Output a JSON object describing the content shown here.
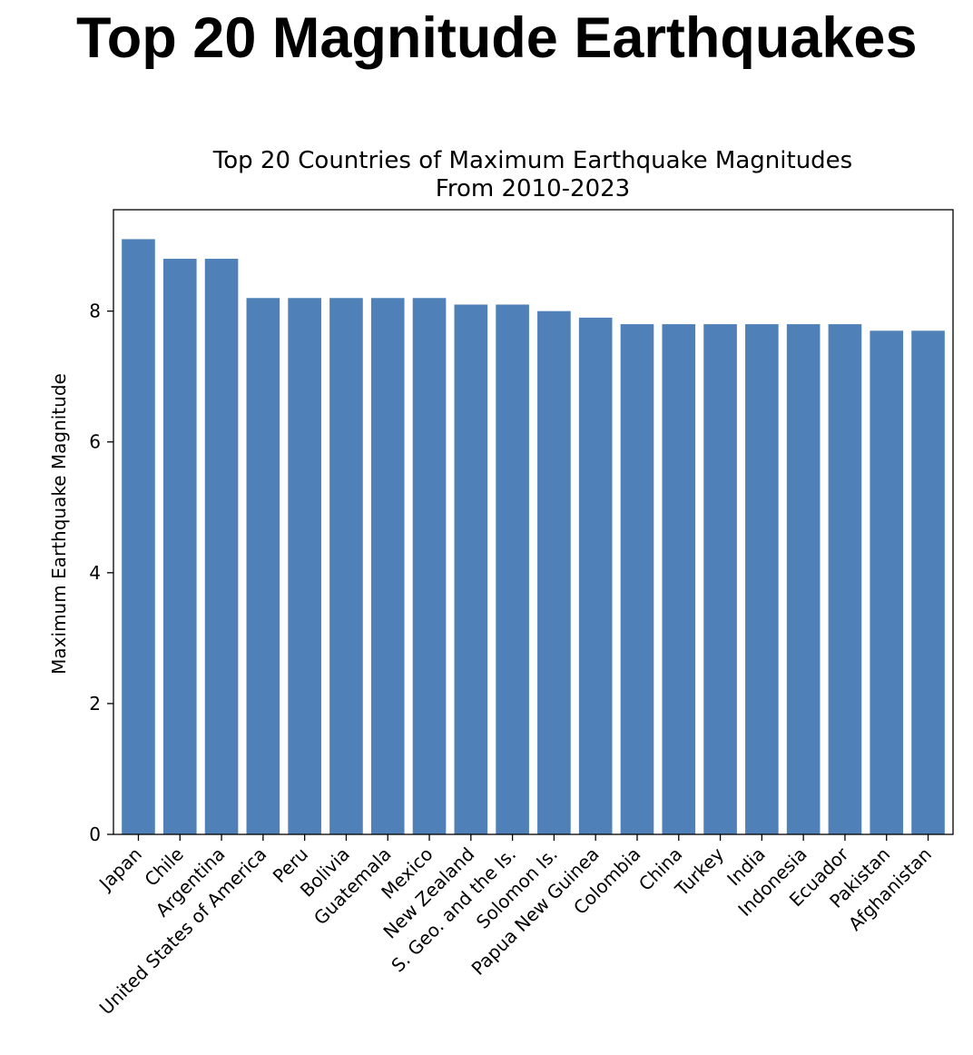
{
  "page": {
    "title": "Top 20 Magnitude Earthquakes"
  },
  "chart_data": {
    "type": "bar",
    "title": "Top 20 Countries of Maximum Earthquake Magnitudes\nFrom 2010-2023",
    "xlabel": "",
    "ylabel": "Maximum Earthquake Magnitude",
    "ylim": [
      0,
      9.55
    ],
    "yticks": [
      0,
      2,
      4,
      6,
      8
    ],
    "grid": false,
    "bar_color": "#4f81b8",
    "categories": [
      "Japan",
      "Chile",
      "Argentina",
      "United States of America",
      "Peru",
      "Bolivia",
      "Guatemala",
      "Mexico",
      "New Zealand",
      "S. Geo. and the Is.",
      "Solomon Is.",
      "Papua New Guinea",
      "Colombia",
      "China",
      "Turkey",
      "India",
      "Indonesia",
      "Ecuador",
      "Pakistan",
      "Afghanistan"
    ],
    "values": [
      9.1,
      8.8,
      8.8,
      8.2,
      8.2,
      8.2,
      8.2,
      8.2,
      8.1,
      8.1,
      8.0,
      7.9,
      7.8,
      7.8,
      7.8,
      7.8,
      7.8,
      7.8,
      7.7,
      7.7
    ]
  }
}
